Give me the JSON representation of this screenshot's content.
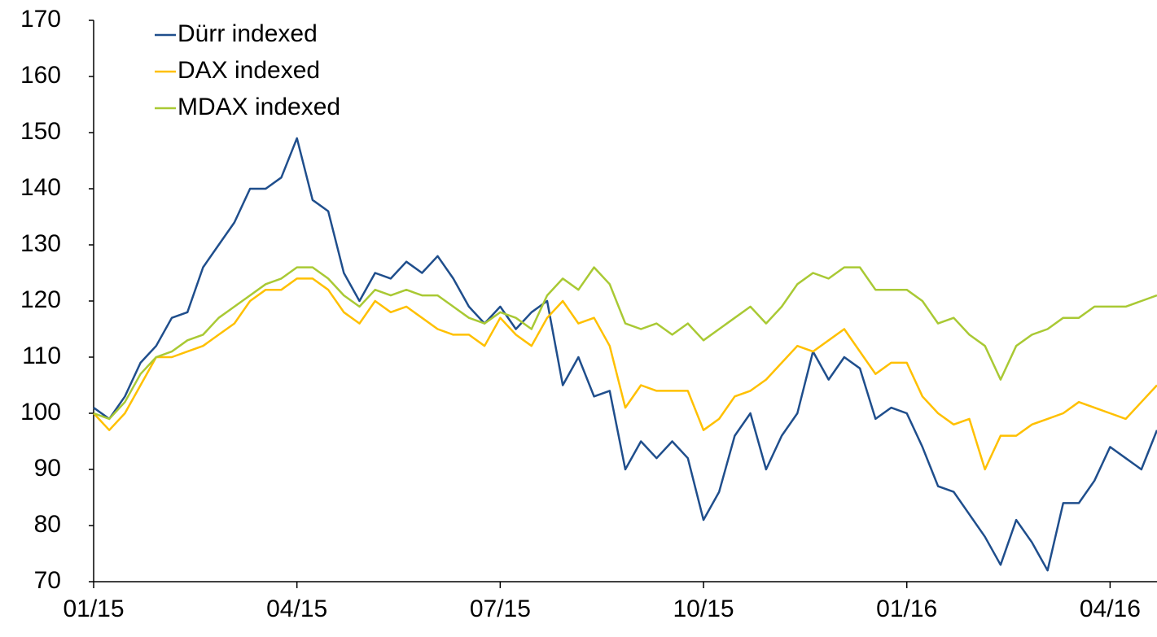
{
  "chart_data": {
    "type": "line",
    "categories": [
      "01/15",
      null,
      null,
      null,
      null,
      null,
      null,
      null,
      null,
      null,
      null,
      null,
      null,
      "04/15",
      null,
      null,
      null,
      null,
      null,
      null,
      null,
      null,
      null,
      null,
      null,
      null,
      "07/15",
      null,
      null,
      null,
      null,
      null,
      null,
      null,
      null,
      null,
      null,
      null,
      null,
      "10/15",
      null,
      null,
      null,
      null,
      null,
      null,
      null,
      null,
      null,
      null,
      null,
      null,
      "01/16",
      null,
      null,
      null,
      null,
      null,
      null,
      null,
      null,
      null,
      null,
      null,
      null,
      "04/16",
      null,
      null,
      null
    ],
    "series": [
      {
        "name": "Dürr indexed",
        "color": "#1f4e8c",
        "values": [
          101,
          99,
          103,
          109,
          112,
          117,
          118,
          126,
          130,
          134,
          140,
          140,
          142,
          149,
          138,
          136,
          125,
          120,
          125,
          124,
          127,
          125,
          128,
          124,
          119,
          116,
          119,
          115,
          118,
          120,
          105,
          110,
          103,
          104,
          90,
          95,
          92,
          95,
          92,
          81,
          86,
          96,
          100,
          90,
          96,
          100,
          111,
          106,
          110,
          108,
          99,
          101,
          100,
          94,
          87,
          86,
          82,
          78,
          73,
          81,
          77,
          72,
          84,
          84,
          88,
          94,
          92,
          90,
          97
        ]
      },
      {
        "name": "DAX indexed",
        "color": "#ffc000",
        "values": [
          100,
          97,
          100,
          105,
          110,
          110,
          111,
          112,
          114,
          116,
          120,
          122,
          122,
          124,
          124,
          122,
          118,
          116,
          120,
          118,
          119,
          117,
          115,
          114,
          114,
          112,
          117,
          114,
          112,
          117,
          120,
          116,
          117,
          112,
          101,
          105,
          104,
          104,
          104,
          97,
          99,
          103,
          104,
          106,
          109,
          112,
          111,
          113,
          115,
          111,
          107,
          109,
          109,
          103,
          100,
          98,
          99,
          90,
          96,
          96,
          98,
          99,
          100,
          102,
          101,
          100,
          99,
          102,
          105
        ]
      },
      {
        "name": "MDAX indexed",
        "color": "#a9c934",
        "values": [
          100,
          99,
          102,
          107,
          110,
          111,
          113,
          114,
          117,
          119,
          121,
          123,
          124,
          126,
          126,
          124,
          121,
          119,
          122,
          121,
          122,
          121,
          121,
          119,
          117,
          116,
          118,
          117,
          115,
          121,
          124,
          122,
          126,
          123,
          116,
          115,
          116,
          114,
          116,
          113,
          115,
          117,
          119,
          116,
          119,
          123,
          125,
          124,
          126,
          126,
          122,
          122,
          122,
          120,
          116,
          117,
          114,
          112,
          106,
          112,
          114,
          115,
          117,
          117,
          119,
          119,
          119,
          120,
          121
        ]
      }
    ],
    "ylim": [
      70,
      170
    ],
    "yticks": [
      70,
      80,
      90,
      100,
      110,
      120,
      130,
      140,
      150,
      160,
      170
    ],
    "legend": "upper left"
  }
}
